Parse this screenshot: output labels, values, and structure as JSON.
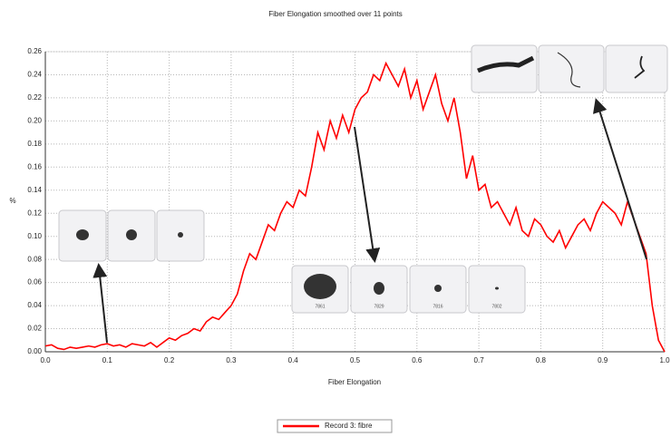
{
  "chart_data": {
    "type": "line",
    "title": "Fiber Elongation smoothed over 11 points",
    "xlabel": "Fiber Elongation",
    "ylabel": "%",
    "grid": true,
    "legend": "bottom",
    "xlim": [
      0,
      1
    ],
    "ylim": [
      0,
      0.26
    ],
    "xticks": [
      {
        "value": 0,
        "label": "0.0"
      },
      {
        "value": 0.1,
        "label": "0.1"
      },
      {
        "value": 0.2,
        "label": "0.2"
      },
      {
        "value": 0.3,
        "label": "0.3"
      },
      {
        "value": 0.4,
        "label": "0.4"
      },
      {
        "value": 0.5,
        "label": "0.5"
      },
      {
        "value": 0.6,
        "label": "0.6"
      },
      {
        "value": 0.7,
        "label": "0.7"
      },
      {
        "value": 0.8,
        "label": "0.8"
      },
      {
        "value": 0.9,
        "label": "0.9"
      },
      {
        "value": 1,
        "label": "1.0"
      }
    ],
    "yticks": [
      {
        "value": 0,
        "label": "0.00"
      },
      {
        "value": 0.02,
        "label": "0.02"
      },
      {
        "value": 0.04,
        "label": "0.04"
      },
      {
        "value": 0.06,
        "label": "0.06"
      },
      {
        "value": 0.08,
        "label": "0.08"
      },
      {
        "value": 0.1,
        "label": "0.10"
      },
      {
        "value": 0.12,
        "label": "0.12"
      },
      {
        "value": 0.14,
        "label": "0.14"
      },
      {
        "value": 0.16,
        "label": "0.16"
      },
      {
        "value": 0.18,
        "label": "0.18"
      },
      {
        "value": 0.2,
        "label": "0.20"
      },
      {
        "value": 0.22,
        "label": "0.22"
      },
      {
        "value": 0.24,
        "label": "0.24"
      },
      {
        "value": 0.26,
        "label": "0.26"
      }
    ],
    "x": [
      0,
      0.01,
      0.02,
      0.03,
      0.04,
      0.05,
      0.06,
      0.07,
      0.08,
      0.09,
      0.1,
      0.11,
      0.12,
      0.13,
      0.14,
      0.15,
      0.16,
      0.17,
      0.18,
      0.19,
      0.2,
      0.21,
      0.22,
      0.23,
      0.24,
      0.25,
      0.26,
      0.27,
      0.28,
      0.29,
      0.3,
      0.31,
      0.32,
      0.33,
      0.34,
      0.35,
      0.36,
      0.37,
      0.38,
      0.39,
      0.4,
      0.41,
      0.42,
      0.43,
      0.44,
      0.45,
      0.46,
      0.47,
      0.48,
      0.49,
      0.5,
      0.51,
      0.52,
      0.53,
      0.54,
      0.55,
      0.56,
      0.57,
      0.58,
      0.59,
      0.6,
      0.61,
      0.62,
      0.63,
      0.64,
      0.65,
      0.66,
      0.67,
      0.68,
      0.69,
      0.7,
      0.71,
      0.72,
      0.73,
      0.74,
      0.75,
      0.76,
      0.77,
      0.78,
      0.79,
      0.8,
      0.81,
      0.82,
      0.83,
      0.84,
      0.85,
      0.86,
      0.87,
      0.88,
      0.89,
      0.9,
      0.91,
      0.92,
      0.93,
      0.94,
      0.95,
      0.96,
      0.97,
      0.98,
      0.99,
      1
    ],
    "series": [
      {
        "name": "Record 3: fibre",
        "color": "#ff0000",
        "values": [
          0.005,
          0.006,
          0.003,
          0.002,
          0.004,
          0.003,
          0.004,
          0.005,
          0.004,
          0.006,
          0.007,
          0.005,
          0.006,
          0.004,
          0.007,
          0.006,
          0.005,
          0.008,
          0.004,
          0.008,
          0.012,
          0.01,
          0.014,
          0.016,
          0.02,
          0.018,
          0.026,
          0.03,
          0.028,
          0.034,
          0.04,
          0.05,
          0.07,
          0.085,
          0.08,
          0.095,
          0.11,
          0.105,
          0.12,
          0.13,
          0.125,
          0.14,
          0.135,
          0.16,
          0.19,
          0.175,
          0.2,
          0.185,
          0.205,
          0.19,
          0.21,
          0.22,
          0.225,
          0.24,
          0.235,
          0.25,
          0.24,
          0.23,
          0.245,
          0.22,
          0.235,
          0.21,
          0.225,
          0.24,
          0.215,
          0.2,
          0.22,
          0.19,
          0.15,
          0.17,
          0.14,
          0.145,
          0.125,
          0.13,
          0.12,
          0.11,
          0.125,
          0.105,
          0.1,
          0.115,
          0.11,
          0.1,
          0.095,
          0.105,
          0.09,
          0.1,
          0.11,
          0.115,
          0.105,
          0.12,
          0.13,
          0.125,
          0.12,
          0.11,
          0.13,
          0.115,
          0.1,
          0.085,
          0.04,
          0.01,
          0
        ]
      }
    ],
    "annotations": [
      "7861",
      "7829",
      "7816",
      "7802"
    ]
  }
}
